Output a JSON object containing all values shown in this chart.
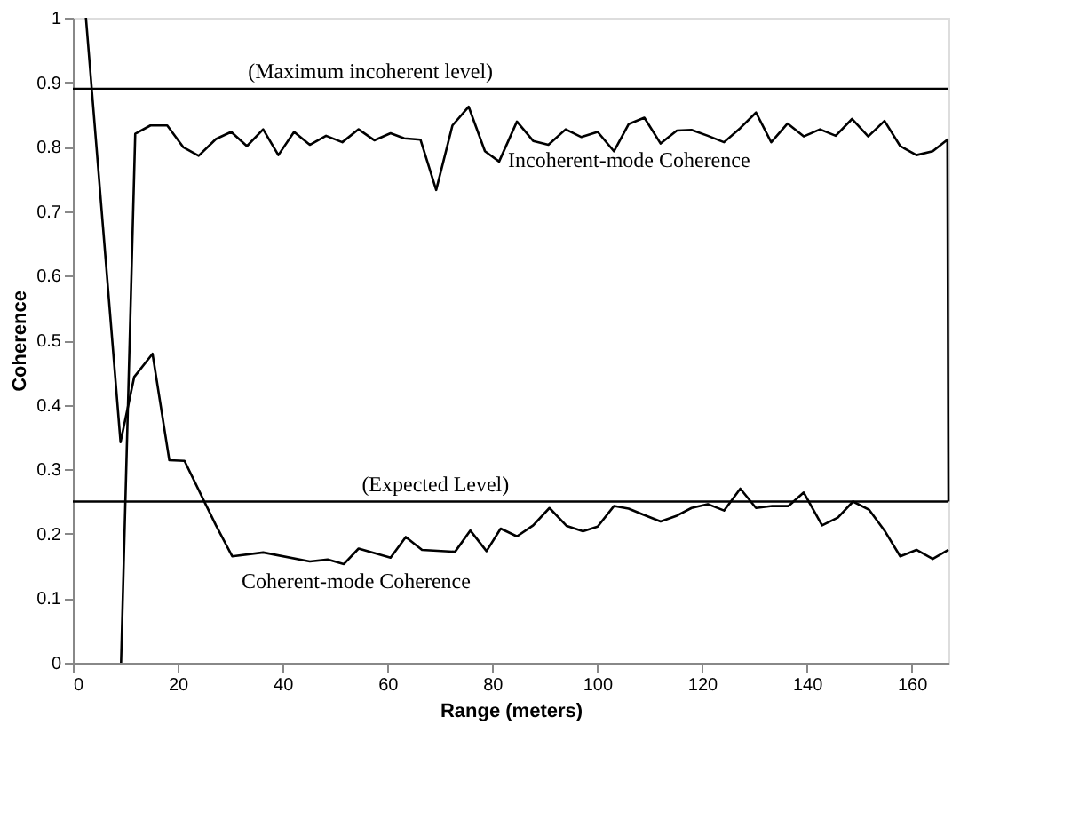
{
  "chart_data": {
    "type": "line",
    "xlabel": "Range (meters)",
    "ylabel": "Coherence",
    "xlim": [
      0,
      167
    ],
    "ylim": [
      0,
      1
    ],
    "xticks": [
      0,
      20,
      40,
      60,
      80,
      100,
      120,
      140,
      160
    ],
    "yticks": [
      0,
      0.1,
      0.2,
      0.3,
      0.4,
      0.5,
      0.6,
      0.7,
      0.8,
      0.9,
      1
    ],
    "grid": false,
    "marker": "none",
    "line_style": "solid",
    "series": [
      {
        "color": "#000000",
        "x": [
          9.2,
          11.9,
          14.8,
          18,
          21.1,
          24,
          27.3,
          30.2,
          33.2,
          36.3,
          39.2,
          42.2,
          45.2,
          48.3,
          51.4,
          54.5,
          57.5,
          60.6,
          63.2,
          66.3,
          69.3,
          72.4,
          75.5,
          78.6,
          81.3,
          84.7,
          87.8,
          90.7,
          94,
          97,
          100.1,
          103.2,
          106,
          109,
          112.1,
          115.2,
          118,
          121.1,
          124.2,
          127.3,
          130.3,
          133.2,
          136.3,
          139.4,
          142.5,
          145.5,
          148.6,
          151.7,
          154.8,
          157.8,
          160.9,
          164,
          166.8,
          167
        ],
        "values": [
          0,
          0.82,
          0.833,
          0.833,
          0.799,
          0.786,
          0.812,
          0.823,
          0.801,
          0.827,
          0.787,
          0.823,
          0.803,
          0.817,
          0.807,
          0.827,
          0.81,
          0.821,
          0.813,
          0.811,
          0.733,
          0.833,
          0.862,
          0.793,
          0.777,
          0.839,
          0.809,
          0.803,
          0.827,
          0.815,
          0.823,
          0.793,
          0.835,
          0.845,
          0.805,
          0.825,
          0.826,
          0.817,
          0.807,
          0.829,
          0.853,
          0.807,
          0.836,
          0.816,
          0.827,
          0.817,
          0.843,
          0.816,
          0.84,
          0.801,
          0.787,
          0.793,
          0.811,
          0.25
        ]
      },
      {
        "color": "#000000",
        "x": [
          2.5,
          9.1,
          11.7,
          15.2,
          18.4,
          21.3,
          27.3,
          30.4,
          36.3,
          45.2,
          48.6,
          51.7,
          54.5,
          60.6,
          63.5,
          66.6,
          72.9,
          75.8,
          78.9,
          81.6,
          84.7,
          87.8,
          90.9,
          94.2,
          97.3,
          100.1,
          103.2,
          106,
          109,
          112.1,
          115.2,
          118,
          121.1,
          124.2,
          127.3,
          130.3,
          133.4,
          136.5,
          139.4,
          142.9,
          145.9,
          148.8,
          151.9,
          154.8,
          157.8,
          160.9,
          164,
          167
        ],
        "values": [
          1.0,
          0.342,
          0.443,
          0.479,
          0.314,
          0.313,
          0.213,
          0.165,
          0.171,
          0.157,
          0.16,
          0.153,
          0.177,
          0.163,
          0.195,
          0.175,
          0.172,
          0.205,
          0.173,
          0.208,
          0.196,
          0.213,
          0.24,
          0.212,
          0.204,
          0.211,
          0.243,
          0.239,
          0.229,
          0.219,
          0.228,
          0.24,
          0.246,
          0.236,
          0.27,
          0.24,
          0.243,
          0.243,
          0.264,
          0.213,
          0.225,
          0.25,
          0.237,
          0.205,
          0.165,
          0.175,
          0.161,
          0.175
        ]
      }
    ],
    "ref_lines": [
      {
        "axis": "y",
        "value": 0.89,
        "label": "(Maximum incoherent level)",
        "color": "#000000"
      },
      {
        "axis": "y",
        "value": 0.25,
        "label": "(Expected Level)",
        "color": "#000000"
      }
    ],
    "annotations": [
      {
        "text": "Incoherent-mode Coherence",
        "x": 83,
        "y": 0.78
      },
      "Coherent-mode Coherence"
    ]
  }
}
